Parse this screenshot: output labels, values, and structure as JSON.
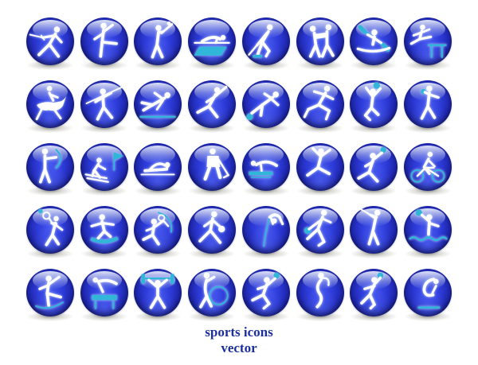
{
  "page": {
    "background": "#ffffff"
  },
  "grid": {
    "rows": 5,
    "columns": 8
  },
  "colors": {
    "figure": "#ffffff",
    "accent": "#31b5d8",
    "sphere_main": "#2d3bd9",
    "sphere_dark": "#0d1057",
    "caption_text": "#1c2f9e"
  },
  "caption": {
    "line1": "sports icons",
    "line2": "vector"
  },
  "icons": [
    {
      "sport": "fencing",
      "label": "fencing-icon"
    },
    {
      "sport": "ballet-dance",
      "label": "ballet-dance-icon"
    },
    {
      "sport": "baseball",
      "label": "baseball-icon"
    },
    {
      "sport": "balance-beam",
      "label": "balance-beam-gymnastics-icon"
    },
    {
      "sport": "ice-hockey",
      "label": "ice-hockey-icon"
    },
    {
      "sport": "wrestling",
      "label": "wrestling-icon"
    },
    {
      "sport": "kayaking",
      "label": "kayaking-icon"
    },
    {
      "sport": "hurdles",
      "label": "hurdles-icon"
    },
    {
      "sport": "equestrian",
      "label": "equestrian-jumping-icon"
    },
    {
      "sport": "javelin-throw",
      "label": "javelin-throw-icon"
    },
    {
      "sport": "long-jump",
      "label": "long-jump-icon"
    },
    {
      "sport": "speed-skating",
      "label": "speed-skating-icon"
    },
    {
      "sport": "soccer",
      "label": "soccer-kick-icon"
    },
    {
      "sport": "sprinting",
      "label": "sprinting-icon"
    },
    {
      "sport": "volleyball",
      "label": "volleyball-icon"
    },
    {
      "sport": "shot-put",
      "label": "shot-put-icon"
    },
    {
      "sport": "archery",
      "label": "archery-icon"
    },
    {
      "sport": "slalom-skiing",
      "label": "slalom-skiing-icon"
    },
    {
      "sport": "swimming",
      "label": "swimming-icon"
    },
    {
      "sport": "hockey-player",
      "label": "hockey-player-icon"
    },
    {
      "sport": "springboard-diving",
      "label": "springboard-gymnastics-icon"
    },
    {
      "sport": "floor-gymnastics",
      "label": "floor-gymnastics-icon"
    },
    {
      "sport": "rhythmic-ball",
      "label": "rhythmic-gymnastics-ball-icon"
    },
    {
      "sport": "cycling",
      "label": "cycling-icon"
    },
    {
      "sport": "tennis-serve",
      "label": "tennis-serve-icon"
    },
    {
      "sport": "snowboarding",
      "label": "snowboarding-icon"
    },
    {
      "sport": "badminton",
      "label": "racket-swing-icon"
    },
    {
      "sport": "basketball",
      "label": "basketball-icon"
    },
    {
      "sport": "pole-vault",
      "label": "pole-vault-icon"
    },
    {
      "sport": "bowling",
      "label": "bowling-icon"
    },
    {
      "sport": "golf",
      "label": "golf-swing-icon"
    },
    {
      "sport": "water-polo",
      "label": "water-polo-icon"
    },
    {
      "sport": "figure-skating",
      "label": "figure-skating-icon"
    },
    {
      "sport": "pommel-horse",
      "label": "pommel-horse-icon"
    },
    {
      "sport": "weightlifting",
      "label": "weightlifting-icon"
    },
    {
      "sport": "rhythmic-hoop",
      "label": "rhythmic-gymnastics-hoop-icon"
    },
    {
      "sport": "handball",
      "label": "handball-throw-icon"
    },
    {
      "sport": "ribbon-dance",
      "label": "ribbon-dance-icon"
    },
    {
      "sport": "discus-throw",
      "label": "discus-throw-icon"
    },
    {
      "sport": "platform-diving",
      "label": "platform-diving-icon"
    }
  ]
}
